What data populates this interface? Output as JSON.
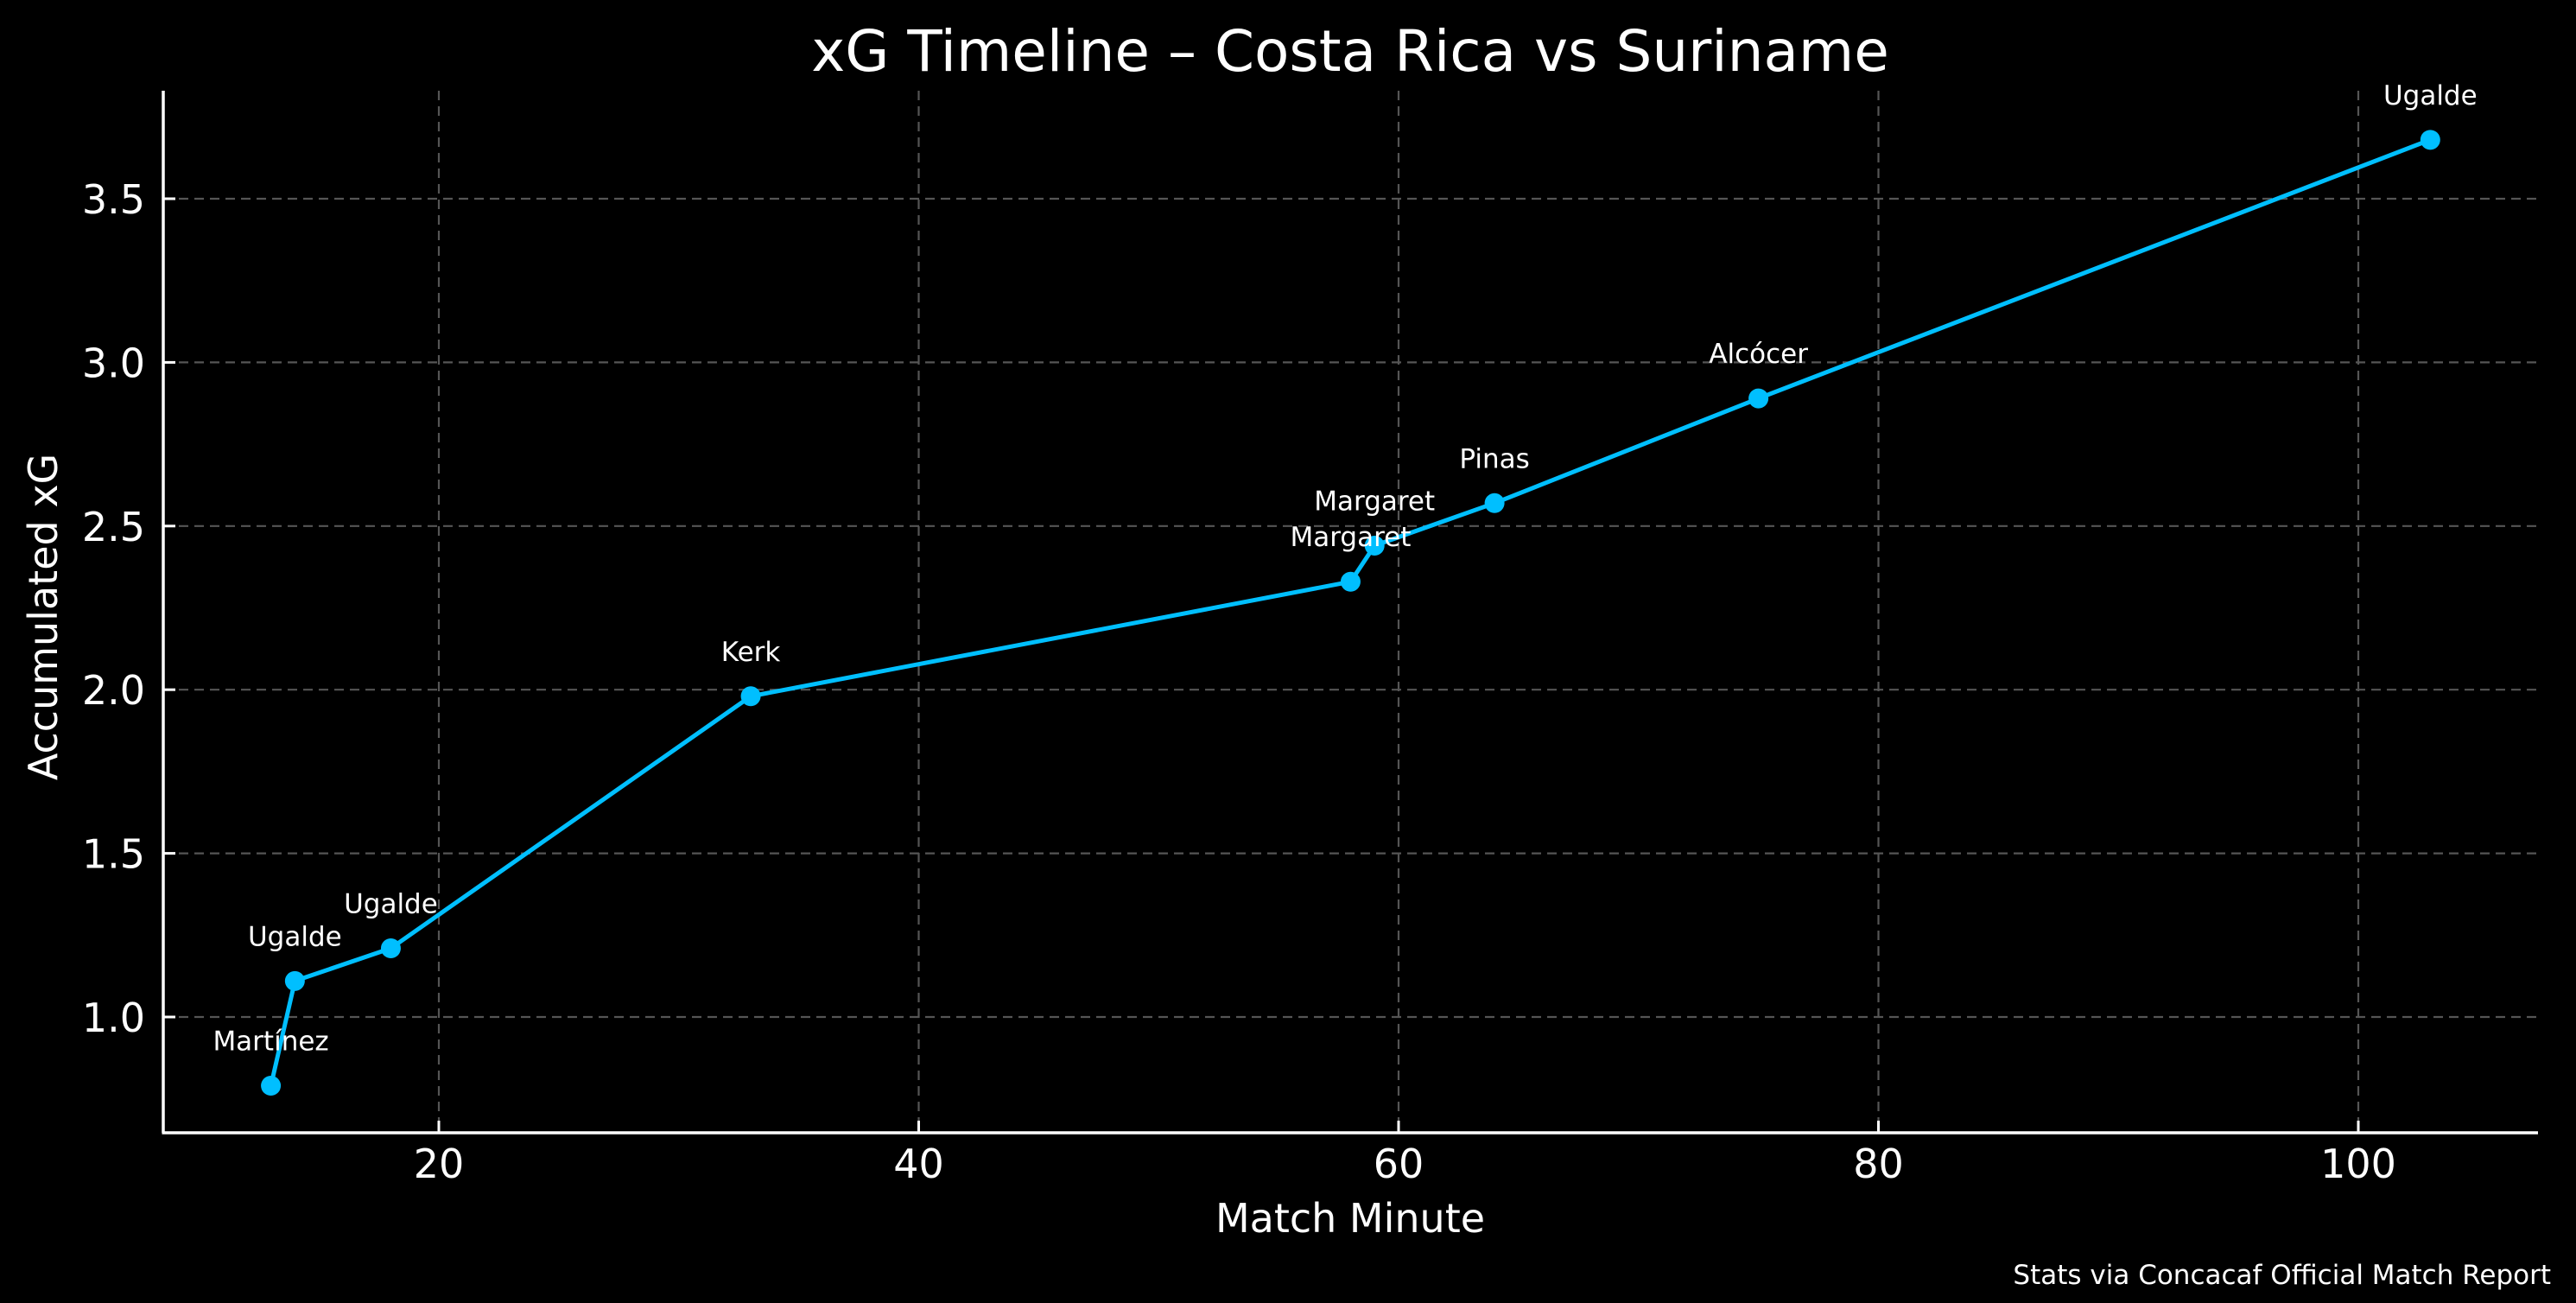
{
  "chart_data": {
    "type": "line",
    "title": "xG Timeline – Costa Rica vs Suriname",
    "xlabel": "Match Minute",
    "ylabel": "Accumulated xG",
    "xlim": [
      8.5,
      107.5
    ],
    "ylim": [
      0.65,
      3.83
    ],
    "xticks": [
      20,
      40,
      60,
      80,
      100
    ],
    "xtick_labels": [
      "20",
      "40",
      "60",
      "80",
      "100"
    ],
    "yticks": [
      1.0,
      1.5,
      2.0,
      2.5,
      3.0,
      3.5
    ],
    "ytick_labels": [
      "1.0",
      "1.5",
      "2.0",
      "2.5",
      "3.0",
      "3.5"
    ],
    "grid": true,
    "legend": null,
    "series": [
      {
        "name": "Accumulated xG",
        "color": "#00BFFF",
        "x": [
          13,
          14,
          18,
          33,
          58,
          59,
          64,
          75,
          103
        ],
        "values": [
          0.79,
          1.11,
          1.21,
          1.98,
          2.33,
          2.44,
          2.57,
          2.89,
          3.68
        ],
        "annotations": [
          "Martínez",
          "Ugalde",
          "Ugalde",
          "Kerk",
          "Margaret",
          "Margaret",
          "Pinas",
          "Alcócer",
          "Ugalde"
        ]
      }
    ],
    "footer_note": "Stats via Concacaf Official Match Report"
  },
  "colors": {
    "background": "#000000",
    "text": "#ffffff",
    "grid": "#555555",
    "line": "#00BFFF"
  }
}
